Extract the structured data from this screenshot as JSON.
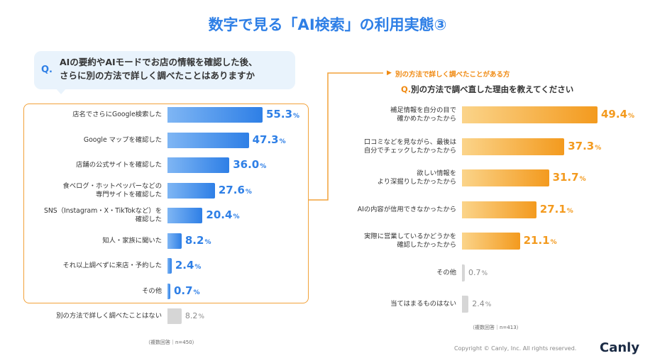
{
  "title": "数字で見る「AI検索」の利用実態③",
  "left_question": {
    "mark": "Q.",
    "lines": [
      "AIの要約やAIモードでお店の情報を確認した後、",
      "さらに別の方法で詳しく調べたことはありますか"
    ]
  },
  "right_annotation": "別の方法で詳しく調べたことがある方",
  "right_question": {
    "mark": "Q.",
    "text": "別の方法で調べ直した理由を教えてください"
  },
  "left_note": "（複数回答｜n=450）",
  "right_note": "（複数回答｜n=413）",
  "copyright": "Copyright © Canly, Inc. All rights reserved.",
  "logo": "Canly",
  "percent_unit": "%",
  "colors": {
    "blue": "#2e7fe6",
    "orange": "#f39a1e",
    "gray": "#d6d6d6",
    "gray_text": "#8a8a8a"
  },
  "chart_data": [
    {
      "type": "bar",
      "orientation": "horizontal",
      "categories": [
        [
          "店名でさらにGoogle検索した"
        ],
        [
          "Google マップを確認した"
        ],
        [
          "店舗の公式サイトを確認した"
        ],
        [
          "食べログ・ホットペッパーなどの",
          "専門サイトを確認した"
        ],
        [
          "SNS（Instagram・X・TikTokなど）を",
          "確認した"
        ],
        [
          "知人・家族に聞いた"
        ],
        [
          "それ以上調べずに来店・予約した"
        ],
        [
          "その他"
        ],
        [
          "別の方法で詳しく調べたことはない"
        ]
      ],
      "values": [
        55.3,
        47.3,
        36.0,
        27.6,
        20.4,
        8.2,
        2.4,
        0.7,
        8.2
      ],
      "labels": [
        "55.3",
        "47.3",
        "36.0",
        "27.6",
        "20.4",
        "8.2",
        "2.4",
        "0.7",
        "8.2"
      ],
      "highlight": [
        true,
        true,
        true,
        true,
        true,
        true,
        true,
        true,
        false
      ],
      "xlim": [
        0,
        55.3
      ]
    },
    {
      "type": "bar",
      "orientation": "horizontal",
      "categories": [
        [
          "補足情報を自分の目で",
          "確かめたかったから"
        ],
        [
          "口コミなどを見ながら、最後は",
          "自分でチェックしたかったから"
        ],
        [
          "欲しい情報を",
          "より深掘りしたかったから"
        ],
        [
          "AIの内容が信用できなかったから"
        ],
        [
          "実際に営業しているかどうかを",
          "確認したかったから"
        ],
        [
          "その他"
        ],
        [
          "当てはまるものはない"
        ]
      ],
      "values": [
        49.4,
        37.3,
        31.7,
        27.1,
        21.1,
        0.7,
        2.4
      ],
      "labels": [
        "49.4",
        "37.3",
        "31.7",
        "27.1",
        "21.1",
        "0.7",
        "2.4"
      ],
      "highlight": [
        true,
        true,
        true,
        true,
        true,
        false,
        false
      ],
      "xlim": [
        0,
        49.4
      ]
    }
  ]
}
